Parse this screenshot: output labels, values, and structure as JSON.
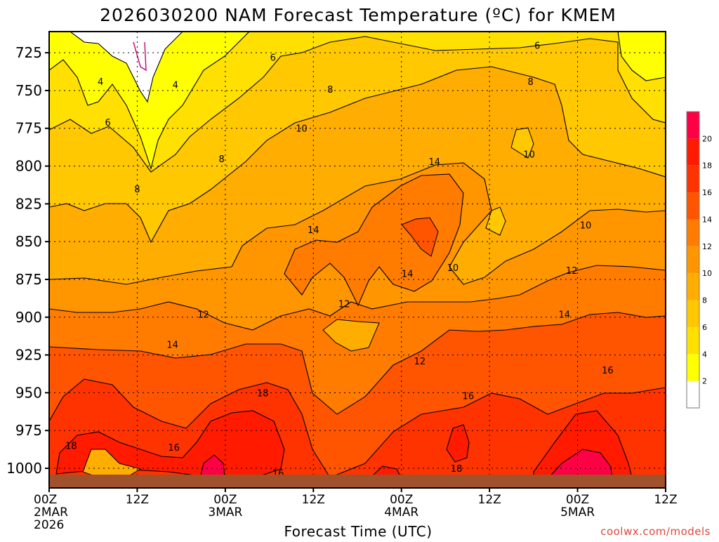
{
  "chart_data": {
    "type": "heatmap",
    "title": "2026030200 NAM Forecast Temperature (ºC) for KMEM",
    "xlabel": "Forecast Time (UTC)",
    "ylabel": "",
    "x_ticks": [
      {
        "hour": 0,
        "lines": [
          "00Z",
          "2MAR",
          "2026"
        ]
      },
      {
        "hour": 12,
        "lines": [
          "12Z"
        ]
      },
      {
        "hour": 24,
        "lines": [
          "00Z",
          "3MAR"
        ]
      },
      {
        "hour": 36,
        "lines": [
          "12Z"
        ]
      },
      {
        "hour": 48,
        "lines": [
          "00Z",
          "4MAR"
        ]
      },
      {
        "hour": 60,
        "lines": [
          "12Z"
        ]
      },
      {
        "hour": 72,
        "lines": [
          "00Z",
          "5MAR"
        ]
      },
      {
        "hour": 84,
        "lines": [
          "12Z"
        ]
      }
    ],
    "xlim": [
      0,
      84
    ],
    "y_ticks": [
      725,
      750,
      775,
      800,
      825,
      850,
      875,
      900,
      925,
      950,
      975,
      1000
    ],
    "ylim": [
      1013,
      711
    ],
    "y_axis_reversed": true,
    "grid": true,
    "legend": {
      "position": "right",
      "levels": [
        2,
        4,
        6,
        8,
        10,
        12,
        14,
        16,
        18,
        20
      ],
      "labels": [
        "2",
        "4",
        "6",
        "8",
        "10",
        "12",
        "14",
        "16",
        "18",
        "20"
      ],
      "colors": [
        "#ffffff",
        "#ffff00",
        "#ffe000",
        "#ffc800",
        "#ffad00",
        "#ff9600",
        "#ff7c00",
        "#ff5400",
        "#ff3300",
        "#ff1a00",
        "#ff0044"
      ]
    },
    "contour_labels": [
      {
        "text": "6",
        "hour": 30.5,
        "pressure": 728
      },
      {
        "text": "6",
        "hour": 66.5,
        "pressure": 720
      },
      {
        "text": "4",
        "hour": 7,
        "pressure": 744
      },
      {
        "text": "4",
        "hour": 17.2,
        "pressure": 746
      },
      {
        "text": "8",
        "hour": 38.3,
        "pressure": 749
      },
      {
        "text": "8",
        "hour": 65.6,
        "pressure": 744
      },
      {
        "text": "6",
        "hour": 8,
        "pressure": 771
      },
      {
        "text": "10",
        "hour": 34.4,
        "pressure": 775
      },
      {
        "text": "10",
        "hour": 65.4,
        "pressure": 792
      },
      {
        "text": "8",
        "hour": 23.5,
        "pressure": 795
      },
      {
        "text": "14",
        "hour": 52.5,
        "pressure": 797
      },
      {
        "text": "8",
        "hour": 12,
        "pressure": 815
      },
      {
        "text": "14",
        "hour": 36,
        "pressure": 842
      },
      {
        "text": "10",
        "hour": 73.1,
        "pressure": 839
      },
      {
        "text": "14",
        "hour": 48.8,
        "pressure": 871
      },
      {
        "text": "10",
        "hour": 55,
        "pressure": 867
      },
      {
        "text": "12",
        "hour": 71.2,
        "pressure": 869
      },
      {
        "text": "12",
        "hour": 40.2,
        "pressure": 891
      },
      {
        "text": "12",
        "hour": 21,
        "pressure": 898
      },
      {
        "text": "14",
        "hour": 70.2,
        "pressure": 898
      },
      {
        "text": "14",
        "hour": 16.8,
        "pressure": 918
      },
      {
        "text": "12",
        "hour": 50.5,
        "pressure": 929
      },
      {
        "text": "16",
        "hour": 76.1,
        "pressure": 935
      },
      {
        "text": "18",
        "hour": 29.1,
        "pressure": 950
      },
      {
        "text": "16",
        "hour": 57.1,
        "pressure": 952
      },
      {
        "text": "18",
        "hour": 3,
        "pressure": 985
      },
      {
        "text": "16",
        "hour": 17,
        "pressure": 986
      },
      {
        "text": "18",
        "hour": 55.5,
        "pressure": 1000
      },
      {
        "text": "16",
        "hour": 31.2,
        "pressure": 1003
      }
    ],
    "credit": "coolwx.com/models"
  }
}
